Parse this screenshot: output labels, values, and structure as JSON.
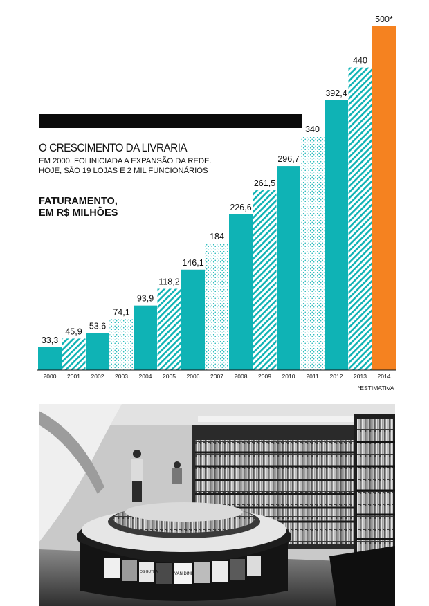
{
  "header": {
    "title": "O CRESCIMENTO DA LIVRARIA",
    "subtitle_lines": [
      "EM 2000, FOI INICIADA A EXPANSÃO DA REDE.",
      "HOJE, SÃO 19 LOJAS E 2 MIL FUNCIONÁRIOS"
    ],
    "metric_lines": [
      "FATURAMENTO,",
      "EM R$ MILHÕES"
    ]
  },
  "footnote": "*ESTIMATIVA",
  "colors": {
    "solid": "#0fb3b5",
    "pattern": "#0fb3b5",
    "estimate": "#f58220",
    "text": "#111111"
  },
  "chart_data": {
    "type": "bar",
    "categories": [
      "2000",
      "2001",
      "2002",
      "2003",
      "2004",
      "2005",
      "2006",
      "2007",
      "2008",
      "2009",
      "2010",
      "2011",
      "2012",
      "2013",
      "2014"
    ],
    "values": [
      33.3,
      45.9,
      53.6,
      74.1,
      93.9,
      118.2,
      146.1,
      184,
      226.6,
      261.5,
      296.7,
      340,
      392.4,
      440,
      500
    ],
    "value_labels": [
      "33,3",
      "45,9",
      "53,6",
      "74,1",
      "93,9",
      "118,2",
      "146,1",
      "184",
      "226,6",
      "261,5",
      "296,7",
      "340",
      "392,4",
      "440",
      "500*"
    ],
    "bar_styles": [
      "solid",
      "diagonal-hatch",
      "solid",
      "dotted",
      "solid",
      "diagonal-hatch",
      "solid",
      "dotted",
      "solid",
      "diagonal-hatch",
      "solid",
      "dotted",
      "solid",
      "diagonal-hatch",
      "estimate"
    ],
    "ylim": [
      0,
      500
    ],
    "grid": false,
    "legend": "none"
  },
  "photo": {
    "book_titles": [
      "VAN DINE",
      "OS GUTRA"
    ]
  }
}
